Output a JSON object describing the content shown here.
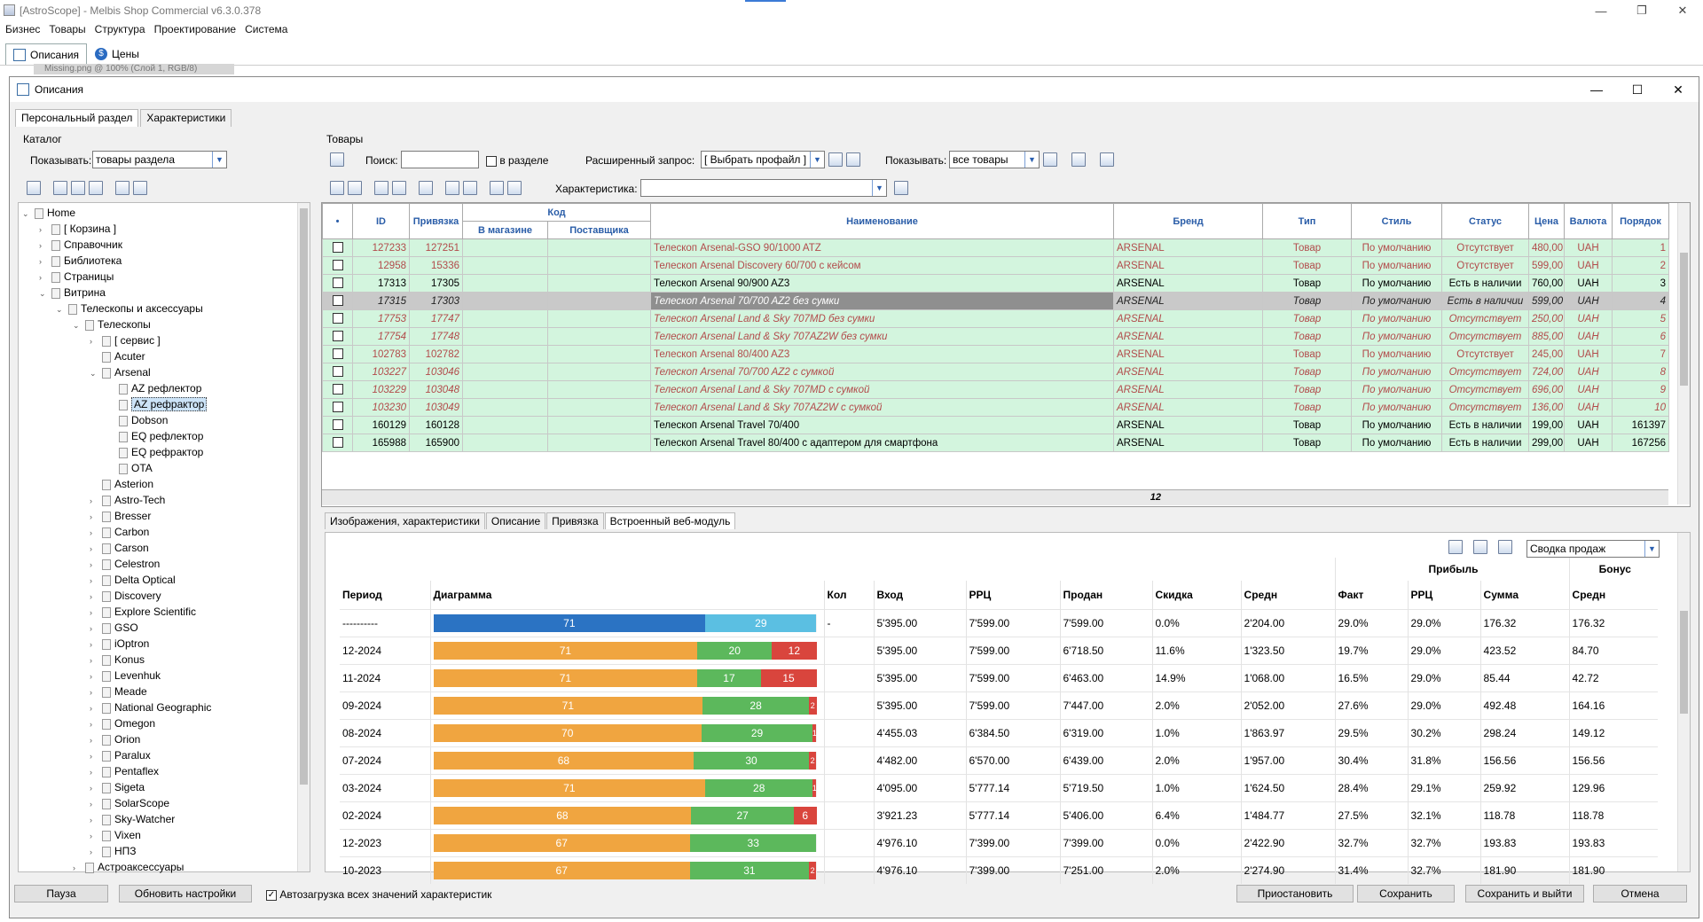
{
  "app": {
    "title": "[AstroScope] - Melbis Shop Commercial v6.3.0.378",
    "menu": [
      "Бизнес",
      "Товары",
      "Структура",
      "Проектирование",
      "Система"
    ],
    "tabs": [
      "Описания",
      "Цены"
    ],
    "ghost": "Missing.png @ 100% (Слой 1, RGB/8)"
  },
  "dialog": {
    "title": "Описания",
    "tabs": [
      "Персональный раздел",
      "Характеристики"
    ]
  },
  "catalog": {
    "title": "Каталог",
    "show_label": "Показывать:",
    "show_value": "товары раздела"
  },
  "tree": [
    {
      "label": "Home",
      "lvl": 0,
      "exp": "v"
    },
    {
      "label": "[ Корзина ]",
      "lvl": 1,
      "exp": ">"
    },
    {
      "label": "Справочник",
      "lvl": 1,
      "exp": ">"
    },
    {
      "label": "Библиотека",
      "lvl": 1,
      "exp": ">"
    },
    {
      "label": "Страницы",
      "lvl": 1,
      "exp": ">"
    },
    {
      "label": "Витрина",
      "lvl": 1,
      "exp": "v"
    },
    {
      "label": "Телескопы и аксессуары",
      "lvl": 2,
      "exp": "v"
    },
    {
      "label": "Телескопы",
      "lvl": 3,
      "exp": "v"
    },
    {
      "label": "[ сервис ]",
      "lvl": 4,
      "exp": ">"
    },
    {
      "label": "Acuter",
      "lvl": 4,
      "exp": ""
    },
    {
      "label": "Arsenal",
      "lvl": 4,
      "exp": "v"
    },
    {
      "label": "AZ рефлектор",
      "lvl": 5,
      "exp": ""
    },
    {
      "label": "AZ рефрактор",
      "lvl": 5,
      "exp": "",
      "sel": true
    },
    {
      "label": "Dobson",
      "lvl": 5,
      "exp": ""
    },
    {
      "label": "EQ рефлектор",
      "lvl": 5,
      "exp": ""
    },
    {
      "label": "EQ рефрактор",
      "lvl": 5,
      "exp": ""
    },
    {
      "label": "OTA",
      "lvl": 5,
      "exp": ""
    },
    {
      "label": "Asterion",
      "lvl": 4,
      "exp": ""
    },
    {
      "label": "Astro-Tech",
      "lvl": 4,
      "exp": ">"
    },
    {
      "label": "Bresser",
      "lvl": 4,
      "exp": ">"
    },
    {
      "label": "Carbon",
      "lvl": 4,
      "exp": ">"
    },
    {
      "label": "Carson",
      "lvl": 4,
      "exp": ">"
    },
    {
      "label": "Celestron",
      "lvl": 4,
      "exp": ">"
    },
    {
      "label": "Delta Optical",
      "lvl": 4,
      "exp": ">"
    },
    {
      "label": "Discovery",
      "lvl": 4,
      "exp": ">"
    },
    {
      "label": "Explore Scientific",
      "lvl": 4,
      "exp": ">"
    },
    {
      "label": "GSO",
      "lvl": 4,
      "exp": ">"
    },
    {
      "label": "iOptron",
      "lvl": 4,
      "exp": ">"
    },
    {
      "label": "Konus",
      "lvl": 4,
      "exp": ">"
    },
    {
      "label": "Levenhuk",
      "lvl": 4,
      "exp": ">"
    },
    {
      "label": "Meade",
      "lvl": 4,
      "exp": ">"
    },
    {
      "label": "National Geographic",
      "lvl": 4,
      "exp": ">"
    },
    {
      "label": "Omegon",
      "lvl": 4,
      "exp": ">"
    },
    {
      "label": "Orion",
      "lvl": 4,
      "exp": ">"
    },
    {
      "label": "Paralux",
      "lvl": 4,
      "exp": ">"
    },
    {
      "label": "Pentaflex",
      "lvl": 4,
      "exp": ">"
    },
    {
      "label": "Sigeta",
      "lvl": 4,
      "exp": ">"
    },
    {
      "label": "SolarScope",
      "lvl": 4,
      "exp": ">"
    },
    {
      "label": "Sky-Watcher",
      "lvl": 4,
      "exp": ">"
    },
    {
      "label": "Vixen",
      "lvl": 4,
      "exp": ">"
    },
    {
      "label": "НПЗ",
      "lvl": 4,
      "exp": ">"
    },
    {
      "label": "Астроаксессуары",
      "lvl": 3,
      "exp": ">"
    }
  ],
  "products": {
    "title": "Товары",
    "search_label": "Поиск:",
    "in_section": "в разделе",
    "ext_label": "Расширенный запрос:",
    "ext_value": "[ Выбрать профайл ]",
    "show_label": "Показывать:",
    "show_value": "все товары",
    "char_label": "Характеристика:"
  },
  "columns": {
    "id": "ID",
    "bind": "Привязка",
    "code": "Код",
    "store": "В магазине",
    "supplier": "Поставщика",
    "name": "Наименование",
    "brand": "Бренд",
    "type": "Тип",
    "style": "Стиль",
    "status": "Статус",
    "price": "Цена",
    "currency": "Валюта",
    "order": "Порядок"
  },
  "rows": [
    {
      "id": "127233",
      "bind": "127251",
      "name": "Телескоп Arsenal-GSO 90/1000 ATZ",
      "brand": "ARSENAL",
      "type": "Товар",
      "style": "По умолчанию",
      "status": "Отсутствует",
      "price": "480,00",
      "cur": "UAH",
      "ord": "1",
      "k": "red"
    },
    {
      "id": "12958",
      "bind": "15336",
      "name": "Телескоп Arsenal Discovery 60/700 с кейсом",
      "brand": "ARSENAL",
      "type": "Товар",
      "style": "По умолчанию",
      "status": "Отсутствует",
      "price": "599,00",
      "cur": "UAH",
      "ord": "2",
      "k": "red"
    },
    {
      "id": "17313",
      "bind": "17305",
      "name": "Телескоп Arsenal 90/900 AZ3",
      "brand": "ARSENAL",
      "type": "Товар",
      "style": "По умолчанию",
      "status": "Есть в наличии",
      "price": "760,00",
      "cur": "UAH",
      "ord": "3",
      "k": "ok"
    },
    {
      "id": "17315",
      "bind": "17303",
      "name": "Телескоп Arsenal 70/700 AZ2 без сумки",
      "brand": "ARSENAL",
      "type": "Товар",
      "style": "По умолчанию",
      "status": "Есть в наличии",
      "price": "599,00",
      "cur": "UAH",
      "ord": "4",
      "k": "sel"
    },
    {
      "id": "17753",
      "bind": "17747",
      "name": "Телескоп Arsenal Land & Sky 707MD без сумки",
      "brand": "ARSENAL",
      "type": "Товар",
      "style": "По умолчанию",
      "status": "Отсутствует",
      "price": "250,00",
      "cur": "UAH",
      "ord": "5",
      "k": "redit"
    },
    {
      "id": "17754",
      "bind": "17748",
      "name": "Телескоп Arsenal Land & Sky 707AZ2W без сумки",
      "brand": "ARSENAL",
      "type": "Товар",
      "style": "По умолчанию",
      "status": "Отсутствует",
      "price": "885,00",
      "cur": "UAH",
      "ord": "6",
      "k": "redit"
    },
    {
      "id": "102783",
      "bind": "102782",
      "name": "Телескоп Arsenal 80/400 AZ3",
      "brand": "ARSENAL",
      "type": "Товар",
      "style": "По умолчанию",
      "status": "Отсутствует",
      "price": "245,00",
      "cur": "UAH",
      "ord": "7",
      "k": "red"
    },
    {
      "id": "103227",
      "bind": "103046",
      "name": "Телескоп Arsenal 70/700 AZ2 с сумкой",
      "brand": "ARSENAL",
      "type": "Товар",
      "style": "По умолчанию",
      "status": "Отсутствует",
      "price": "724,00",
      "cur": "UAH",
      "ord": "8",
      "k": "redit"
    },
    {
      "id": "103229",
      "bind": "103048",
      "name": "Телескоп Arsenal Land & Sky 707MD с сумкой",
      "brand": "ARSENAL",
      "type": "Товар",
      "style": "По умолчанию",
      "status": "Отсутствует",
      "price": "696,00",
      "cur": "UAH",
      "ord": "9",
      "k": "redit"
    },
    {
      "id": "103230",
      "bind": "103049",
      "name": "Телескоп Arsenal Land & Sky 707AZ2W с сумкой",
      "brand": "ARSENAL",
      "type": "Товар",
      "style": "По умолчанию",
      "status": "Отсутствует",
      "price": "136,00",
      "cur": "UAH",
      "ord": "10",
      "k": "redit"
    },
    {
      "id": "160129",
      "bind": "160128",
      "name": "Телескоп Arsenal Travel 70/400",
      "brand": "ARSENAL",
      "type": "Товар",
      "style": "По умолчанию",
      "status": "Есть в наличии",
      "price": "199,00",
      "cur": "UAH",
      "ord": "161397",
      "k": "ok"
    },
    {
      "id": "165988",
      "bind": "165900",
      "name": "Телескоп Arsenal Travel 80/400 с адаптером для смартфона",
      "brand": "ARSENAL",
      "type": "Товар",
      "style": "По умолчанию",
      "status": "Есть в наличии",
      "price": "299,00",
      "cur": "UAH",
      "ord": "167256",
      "k": "ok"
    }
  ],
  "row_count": "12",
  "bottom_tabs": [
    "Изображения, характеристики",
    "Описание",
    "Привязка",
    "Встроенный веб-модуль"
  ],
  "report_select": "Сводка продаж",
  "stats": {
    "hdr": {
      "profit": "Прибыль",
      "bonus": "Бонус",
      "period": "Период",
      "chart": "Диаграмма",
      "qty": "Кол",
      "in": "Вход",
      "rrc": "РРЦ",
      "sold": "Продан",
      "disc": "Скидка",
      "avg": "Средн",
      "fact": "Факт",
      "rrc2": "РРЦ",
      "sum": "Сумма",
      "avg2": "Средн"
    },
    "rows": [
      {
        "p": "----------",
        "b": [
          71,
          29
        ],
        "c": [
          "#2b73c3",
          "#5bbfe2"
        ],
        "q": "-",
        "i": "5'395.00",
        "r": "7'599.00",
        "s": "7'599.00",
        "d": "0.0%",
        "a": "2'204.00",
        "f": "29.0%",
        "rr": "29.0%",
        "sm": "176.32",
        "av": "176.32"
      },
      {
        "p": "12-2024",
        "b": [
          71,
          20,
          12
        ],
        "c": [
          "#f0a540",
          "#5cb85c",
          "#d9453d"
        ],
        "q": "",
        "i": "5'395.00",
        "r": "7'599.00",
        "s": "6'718.50",
        "d": "11.6%",
        "a": "1'323.50",
        "f": "19.7%",
        "rr": "29.0%",
        "sm": "423.52",
        "av": "84.70"
      },
      {
        "p": "11-2024",
        "b": [
          71,
          17,
          15
        ],
        "c": [
          "#f0a540",
          "#5cb85c",
          "#d9453d"
        ],
        "q": "",
        "i": "5'395.00",
        "r": "7'599.00",
        "s": "6'463.00",
        "d": "14.9%",
        "a": "1'068.00",
        "f": "16.5%",
        "rr": "29.0%",
        "sm": "85.44",
        "av": "42.72"
      },
      {
        "p": "09-2024",
        "b": [
          71,
          28,
          2
        ],
        "c": [
          "#f0a540",
          "#5cb85c",
          "#d9453d"
        ],
        "q": "",
        "i": "5'395.00",
        "r": "7'599.00",
        "s": "7'447.00",
        "d": "2.0%",
        "a": "2'052.00",
        "f": "27.6%",
        "rr": "29.0%",
        "sm": "492.48",
        "av": "164.16"
      },
      {
        "p": "08-2024",
        "b": [
          70,
          29,
          1
        ],
        "c": [
          "#f0a540",
          "#5cb85c",
          "#d9453d"
        ],
        "q": "",
        "i": "4'455.03",
        "r": "6'384.50",
        "s": "6'319.00",
        "d": "1.0%",
        "a": "1'863.97",
        "f": "29.5%",
        "rr": "30.2%",
        "sm": "298.24",
        "av": "149.12"
      },
      {
        "p": "07-2024",
        "b": [
          68,
          30,
          2
        ],
        "c": [
          "#f0a540",
          "#5cb85c",
          "#d9453d"
        ],
        "q": "",
        "i": "4'482.00",
        "r": "6'570.00",
        "s": "6'439.00",
        "d": "2.0%",
        "a": "1'957.00",
        "f": "30.4%",
        "rr": "31.8%",
        "sm": "156.56",
        "av": "156.56"
      },
      {
        "p": "03-2024",
        "b": [
          71,
          28,
          1
        ],
        "c": [
          "#f0a540",
          "#5cb85c",
          "#d9453d"
        ],
        "q": "",
        "i": "4'095.00",
        "r": "5'777.14",
        "s": "5'719.50",
        "d": "1.0%",
        "a": "1'624.50",
        "f": "28.4%",
        "rr": "29.1%",
        "sm": "259.92",
        "av": "129.96"
      },
      {
        "p": "02-2024",
        "b": [
          68,
          27,
          6
        ],
        "c": [
          "#f0a540",
          "#5cb85c",
          "#d9453d"
        ],
        "q": "",
        "i": "3'921.23",
        "r": "5'777.14",
        "s": "5'406.00",
        "d": "6.4%",
        "a": "1'484.77",
        "f": "27.5%",
        "rr": "32.1%",
        "sm": "118.78",
        "av": "118.78"
      },
      {
        "p": "12-2023",
        "b": [
          67,
          33
        ],
        "c": [
          "#f0a540",
          "#5cb85c"
        ],
        "q": "",
        "i": "4'976.10",
        "r": "7'399.00",
        "s": "7'399.00",
        "d": "0.0%",
        "a": "2'422.90",
        "f": "32.7%",
        "rr": "32.7%",
        "sm": "193.83",
        "av": "193.83"
      },
      {
        "p": "10-2023",
        "b": [
          67,
          31,
          2
        ],
        "c": [
          "#f0a540",
          "#5cb85c",
          "#d9453d"
        ],
        "q": "",
        "i": "4'976.10",
        "r": "7'399.00",
        "s": "7'251.00",
        "d": "2.0%",
        "a": "2'274.90",
        "f": "31.4%",
        "rr": "32.7%",
        "sm": "181.90",
        "av": "181.90"
      }
    ]
  },
  "buttons": {
    "pause": "Пауза",
    "refresh": "Обновить настройки",
    "autoload": "Автозагрузка всех значений характеристик",
    "suspend": "Приостановить",
    "save": "Сохранить",
    "save_exit": "Сохранить и выйти",
    "cancel": "Отмена"
  }
}
